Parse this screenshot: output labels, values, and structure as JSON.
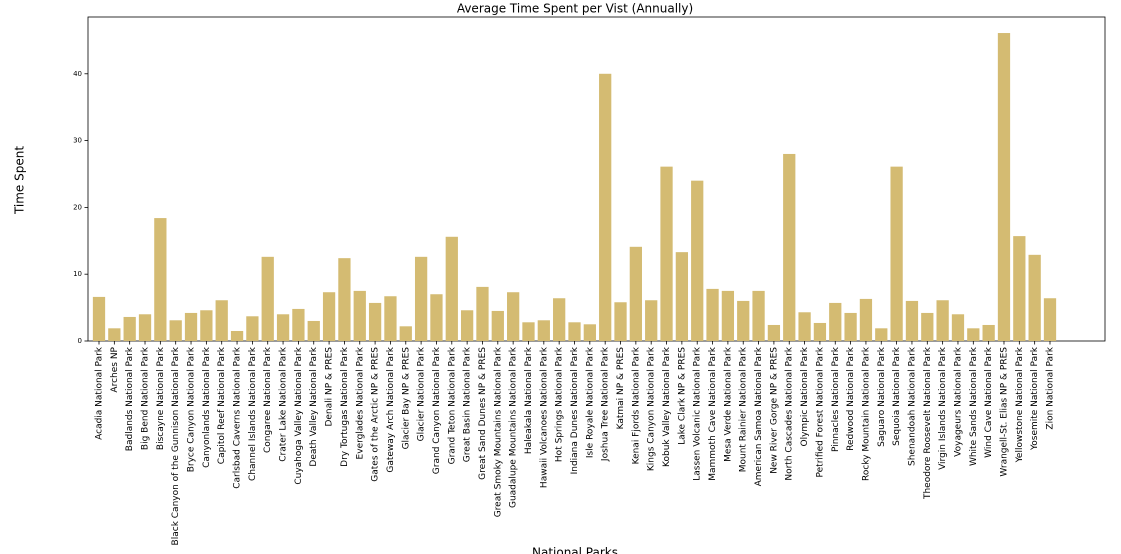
{
  "chart_data": {
    "type": "bar",
    "title": "Average Time Spent per Vist (Annually)",
    "x_label": "National Parks",
    "y_label": "Time Spent",
    "color": "#d4bb72",
    "categories": [
      "Acadia National Park",
      "Arches NP",
      "Badlands National Park",
      "Big Bend National Park",
      "Biscayne National Park",
      "Black Canyon of the Gunnison National Park",
      "Bryce Canyon National Park",
      "Canyonlands National Park",
      "Capitol Reef National Park",
      "Carlsbad Caverns National Park",
      "Channel Islands National Park",
      "Congaree National Park",
      "Crater Lake National Park",
      "Cuyahoga Valley National Park",
      "Death Valley National Park",
      "Denali NP & PRES",
      "Dry Tortugas National Park",
      "Everglades National Park",
      "Gates of the Arctic NP & PRES",
      "Gateway Arch National Park",
      "Glacier Bay NP & PRES",
      "Glacier National Park",
      "Grand Canyon National Park",
      "Grand Teton National Park",
      "Great Basin National Park",
      "Great Sand Dunes NP & PRES",
      "Great Smoky Mountains National Park",
      "Guadalupe Mountains National Park",
      "Haleakala National Park",
      "Hawaii Volcanoes National Park",
      "Hot Springs National Park",
      "Indiana Dunes National Park",
      "Isle Royale National Park",
      "Joshua Tree National Park",
      "Katmai NP & PRES",
      "Kenai Fjords National Park",
      "Kings Canyon National Park",
      "Kobuk Valley National Park",
      "Lake Clark NP & PRES",
      "Lassen Volcanic National Park",
      "Mammoth Cave National Park",
      "Mesa Verde National Park",
      "Mount Rainier National Park",
      "American Samoa National Park",
      "New River Gorge NP & PRES",
      "North Cascades National Park",
      "Olympic National Park",
      "Petrified Forest National Park",
      "Pinnacles National Park",
      "Redwood National Park",
      "Rocky Mountain National Park",
      "Saguaro National Park",
      "Sequoia National Park",
      "Shenandoah National Park",
      "Theodore Roosevelt National Park",
      "Virgin Islands National Park",
      "Voyageurs National Park",
      "White Sands National Park",
      "Wind Cave National Park",
      "Wrangell-St. Elias NP & PRES",
      "Yellowstone National Park",
      "Yosemite National Park",
      "Zion National Park"
    ],
    "values": [
      6.6,
      1.9,
      3.6,
      4.0,
      18.4,
      3.1,
      4.2,
      4.6,
      6.1,
      1.5,
      3.7,
      12.6,
      4.0,
      4.8,
      3.0,
      7.3,
      12.4,
      7.5,
      5.7,
      6.7,
      2.2,
      12.6,
      7.0,
      15.6,
      4.6,
      8.1,
      4.5,
      7.3,
      2.8,
      3.1,
      6.4,
      2.8,
      2.5,
      40.0,
      5.8,
      14.1,
      6.1,
      26.1,
      13.3,
      24.0,
      7.8,
      7.5,
      6.0,
      7.5,
      2.4,
      28.0,
      4.3,
      2.7,
      5.7,
      4.2,
      6.3,
      1.9,
      26.1,
      6.0,
      4.2,
      6.1,
      4.0,
      1.9,
      2.4,
      46.1,
      15.7,
      12.9,
      6.4
    ],
    "ylim": [
      0,
      48.5
    ],
    "yticks": [
      0,
      10,
      20,
      30,
      40
    ],
    "grid": false
  }
}
